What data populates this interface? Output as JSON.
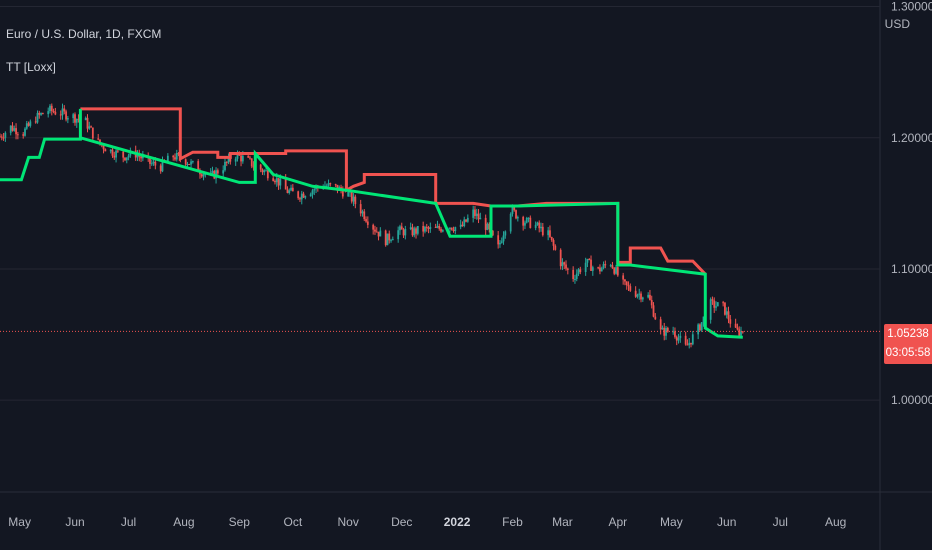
{
  "header": {
    "symbol": "Euro / U.S. Dollar, 1D, FXCM",
    "indicator": "TT [Loxx]",
    "currency": "USD"
  },
  "price_tag": {
    "price": "1.05238",
    "countdown": "03:05:58"
  },
  "colors": {
    "background": "#131722",
    "grid": "#242733",
    "up": "#26a69a",
    "down": "#ef5350",
    "line_up": "#00e676",
    "line_down": "#f05350",
    "last_price_line": "#f05350"
  },
  "chart_data": {
    "type": "candlestick",
    "ylim": [
      0.93,
      1.305
    ],
    "y_ticks": [
      {
        "value": 1.3,
        "label": "1.30000"
      },
      {
        "value": 1.2,
        "label": "1.20000"
      },
      {
        "value": 1.1,
        "label": "1.10000"
      },
      {
        "value": 1.0,
        "label": "1.00000"
      }
    ],
    "x_ticks": [
      {
        "date": "2021-05-01",
        "label": "May",
        "bold": false
      },
      {
        "date": "2021-06-01",
        "label": "Jun",
        "bold": false
      },
      {
        "date": "2021-07-01",
        "label": "Jul",
        "bold": false
      },
      {
        "date": "2021-08-01",
        "label": "Aug",
        "bold": false
      },
      {
        "date": "2021-09-01",
        "label": "Sep",
        "bold": false
      },
      {
        "date": "2021-10-01",
        "label": "Oct",
        "bold": false
      },
      {
        "date": "2021-11-01",
        "label": "Nov",
        "bold": false
      },
      {
        "date": "2021-12-01",
        "label": "Dec",
        "bold": false
      },
      {
        "date": "2022-01-01",
        "label": "2022",
        "bold": true
      },
      {
        "date": "2022-02-01",
        "label": "Feb",
        "bold": false
      },
      {
        "date": "2022-03-01",
        "label": "Mar",
        "bold": false
      },
      {
        "date": "2022-04-01",
        "label": "Apr",
        "bold": false
      },
      {
        "date": "2022-05-01",
        "label": "May",
        "bold": false
      },
      {
        "date": "2022-06-01",
        "label": "Jun",
        "bold": false
      },
      {
        "date": "2022-07-01",
        "label": "Jul",
        "bold": false
      },
      {
        "date": "2022-08-01",
        "label": "Aug",
        "bold": false
      }
    ],
    "last_price": 1.05238,
    "price_path": [
      [
        "2021-04-20",
        1.201
      ],
      [
        "2021-04-26",
        1.208
      ],
      [
        "2021-05-03",
        1.204
      ],
      [
        "2021-05-10",
        1.215
      ],
      [
        "2021-05-17",
        1.221
      ],
      [
        "2021-05-24",
        1.219
      ],
      [
        "2021-05-31",
        1.216
      ],
      [
        "2021-06-07",
        1.212
      ],
      [
        "2021-06-14",
        1.196
      ],
      [
        "2021-06-21",
        1.19
      ],
      [
        "2021-06-28",
        1.186
      ],
      [
        "2021-07-05",
        1.188
      ],
      [
        "2021-07-12",
        1.181
      ],
      [
        "2021-07-19",
        1.178
      ],
      [
        "2021-07-26",
        1.186
      ],
      [
        "2021-08-02",
        1.183
      ],
      [
        "2021-08-09",
        1.176
      ],
      [
        "2021-08-16",
        1.17
      ],
      [
        "2021-08-23",
        1.178
      ],
      [
        "2021-08-30",
        1.187
      ],
      [
        "2021-09-06",
        1.182
      ],
      [
        "2021-09-13",
        1.176
      ],
      [
        "2021-09-20",
        1.171
      ],
      [
        "2021-09-27",
        1.16
      ],
      [
        "2021-10-04",
        1.156
      ],
      [
        "2021-10-11",
        1.16
      ],
      [
        "2021-10-18",
        1.164
      ],
      [
        "2021-10-25",
        1.162
      ],
      [
        "2021-11-01",
        1.157
      ],
      [
        "2021-11-08",
        1.145
      ],
      [
        "2021-11-15",
        1.132
      ],
      [
        "2021-11-22",
        1.122
      ],
      [
        "2021-11-29",
        1.129
      ],
      [
        "2021-12-06",
        1.128
      ],
      [
        "2021-12-13",
        1.13
      ],
      [
        "2021-12-20",
        1.13
      ],
      [
        "2021-12-27",
        1.133
      ],
      [
        "2022-01-03",
        1.131
      ],
      [
        "2022-01-10",
        1.143
      ],
      [
        "2022-01-17",
        1.133
      ],
      [
        "2022-01-24",
        1.116
      ],
      [
        "2022-01-31",
        1.145
      ],
      [
        "2022-02-07",
        1.137
      ],
      [
        "2022-02-14",
        1.133
      ],
      [
        "2022-02-21",
        1.126
      ],
      [
        "2022-02-28",
        1.105
      ],
      [
        "2022-03-07",
        1.094
      ],
      [
        "2022-03-14",
        1.105
      ],
      [
        "2022-03-21",
        1.099
      ],
      [
        "2022-03-28",
        1.105
      ],
      [
        "2022-04-04",
        1.088
      ],
      [
        "2022-04-11",
        1.082
      ],
      [
        "2022-04-18",
        1.079
      ],
      [
        "2022-04-25",
        1.052
      ],
      [
        "2022-05-02",
        1.053
      ],
      [
        "2022-05-09",
        1.04
      ],
      [
        "2022-05-16",
        1.054
      ],
      [
        "2022-05-23",
        1.073
      ],
      [
        "2022-05-30",
        1.071
      ],
      [
        "2022-06-06",
        1.052
      ]
    ],
    "series": [
      {
        "name": "TT upper",
        "color": "#f05350",
        "points": [
          [
            "2021-06-04",
            1.222
          ],
          [
            "2021-07-30",
            1.222
          ],
          [
            "2021-07-30",
            1.184
          ],
          [
            "2021-08-06",
            1.189
          ],
          [
            "2021-08-20",
            1.189
          ],
          [
            "2021-08-20",
            1.185
          ],
          [
            "2021-08-27",
            1.185
          ],
          [
            "2021-08-27",
            1.188
          ],
          [
            "2021-09-27",
            1.188
          ],
          [
            "2021-09-27",
            1.19
          ],
          [
            "2021-10-31",
            1.19
          ],
          [
            "2021-10-31",
            1.16
          ],
          [
            "2021-11-04",
            1.163
          ],
          [
            "2021-11-10",
            1.166
          ],
          [
            "2021-11-10",
            1.172
          ],
          [
            "2021-12-20",
            1.172
          ],
          [
            "2021-12-20",
            1.15
          ],
          [
            "2022-01-10",
            1.15
          ],
          [
            "2022-01-20",
            1.148
          ],
          [
            "2022-02-04",
            1.148
          ],
          [
            "2022-02-20",
            1.15
          ],
          [
            "2022-04-01",
            1.15
          ],
          [
            "2022-04-01",
            1.105
          ],
          [
            "2022-04-08",
            1.105
          ],
          [
            "2022-04-08",
            1.116
          ],
          [
            "2022-04-25",
            1.116
          ],
          [
            "2022-04-29",
            1.106
          ],
          [
            "2022-05-13",
            1.106
          ],
          [
            "2022-05-20",
            1.096
          ]
        ]
      },
      {
        "name": "TT lower",
        "color": "#00e676",
        "points": [
          [
            "2021-04-20",
            1.168
          ],
          [
            "2021-05-02",
            1.168
          ],
          [
            "2021-05-06",
            1.185
          ],
          [
            "2021-05-12",
            1.185
          ],
          [
            "2021-05-15",
            1.199
          ],
          [
            "2021-06-04",
            1.199
          ],
          [
            "2021-06-04",
            1.222
          ],
          [
            "2021-06-04",
            1.2
          ],
          [
            "2021-09-01",
            1.166
          ],
          [
            "2021-09-10",
            1.166
          ],
          [
            "2021-09-10",
            1.188
          ],
          [
            "2021-09-20",
            1.172
          ],
          [
            "2021-10-12",
            1.163
          ],
          [
            "2021-10-31",
            1.16
          ],
          [
            "2021-12-20",
            1.15
          ],
          [
            "2021-12-28",
            1.125
          ],
          [
            "2022-01-20",
            1.125
          ],
          [
            "2022-01-20",
            1.148
          ],
          [
            "2022-02-04",
            1.148
          ],
          [
            "2022-04-01",
            1.15
          ],
          [
            "2022-04-01",
            1.12
          ],
          [
            "2022-04-01",
            1.103
          ],
          [
            "2022-04-08",
            1.103
          ],
          [
            "2022-05-20",
            1.096
          ],
          [
            "2022-05-20",
            1.055
          ],
          [
            "2022-05-27",
            1.049
          ],
          [
            "2022-06-10",
            1.048
          ]
        ]
      }
    ]
  }
}
